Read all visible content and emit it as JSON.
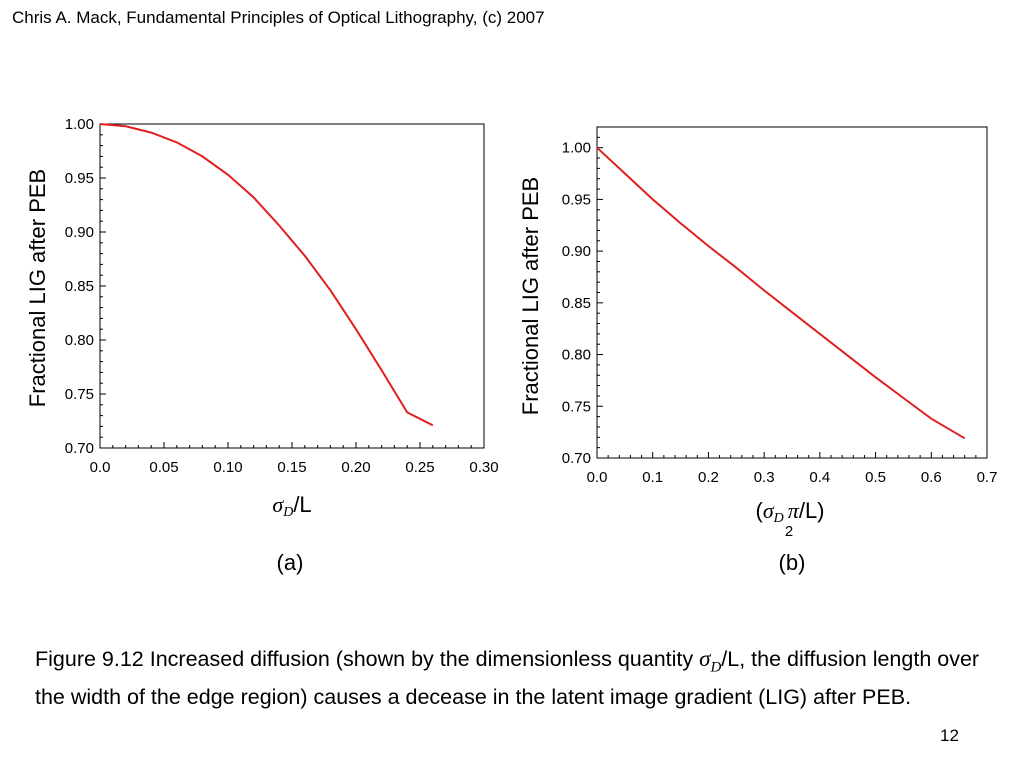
{
  "header": {
    "citation": "Chris A. Mack, Fundamental Principles of Optical Lithography, (c) 2007"
  },
  "chart_data": [
    {
      "type": "line",
      "panel_label": "(a)",
      "ylabel": "Fractional LIG after PEB",
      "xlabel": {
        "sym": "σ",
        "sub": "D",
        "rest": "/L"
      },
      "xlim": [
        0,
        0.3
      ],
      "ylim": [
        0.7,
        1.0
      ],
      "x_ticks": [
        "0.0",
        "0.05",
        "0.10",
        "0.15",
        "0.20",
        "0.25",
        "0.30"
      ],
      "y_ticks": [
        "0.70",
        "0.75",
        "0.80",
        "0.85",
        "0.90",
        "0.95",
        "1.00"
      ],
      "series": [
        {
          "color": "#e02020",
          "x": [
            0.0,
            0.02,
            0.04,
            0.06,
            0.08,
            0.1,
            0.12,
            0.14,
            0.16,
            0.18,
            0.2,
            0.22,
            0.24,
            0.26
          ],
          "y": [
            1.0,
            0.998,
            0.992,
            0.983,
            0.97,
            0.953,
            0.932,
            0.906,
            0.878,
            0.846,
            0.81,
            0.772,
            0.733,
            0.721
          ]
        }
      ]
    },
    {
      "type": "line",
      "panel_label": "(b)",
      "ylabel": "Fractional LIG after PEB",
      "xlabel": {
        "open": "(",
        "sym": "σ",
        "sub": "D",
        "pi": "π",
        "denom": "2",
        "rest": "/L)"
      },
      "xlim": [
        0,
        0.7
      ],
      "ylim": [
        0.7,
        1.02
      ],
      "x_ticks": [
        "0.0",
        "0.1",
        "0.2",
        "0.3",
        "0.4",
        "0.5",
        "0.6",
        "0.7"
      ],
      "y_ticks": [
        "0.70",
        "0.75",
        "0.80",
        "0.85",
        "0.90",
        "0.95",
        "1.00"
      ],
      "series": [
        {
          "color": "#e02020",
          "x": [
            0.0,
            0.05,
            0.1,
            0.15,
            0.2,
            0.25,
            0.3,
            0.35,
            0.4,
            0.45,
            0.5,
            0.55,
            0.6,
            0.66
          ],
          "y": [
            1.0,
            0.975,
            0.95,
            0.927,
            0.905,
            0.884,
            0.862,
            0.841,
            0.82,
            0.799,
            0.778,
            0.758,
            0.738,
            0.719
          ]
        }
      ]
    }
  ],
  "caption": {
    "before": "Figure 9.12  Increased diffusion (shown by the dimensionless quantity ",
    "sym": "σ",
    "sub": "D",
    "after": "/L, the diffusion length over the width of the edge region) causes a decease in the latent image gradient (LIG) after PEB."
  },
  "page_number": "12"
}
